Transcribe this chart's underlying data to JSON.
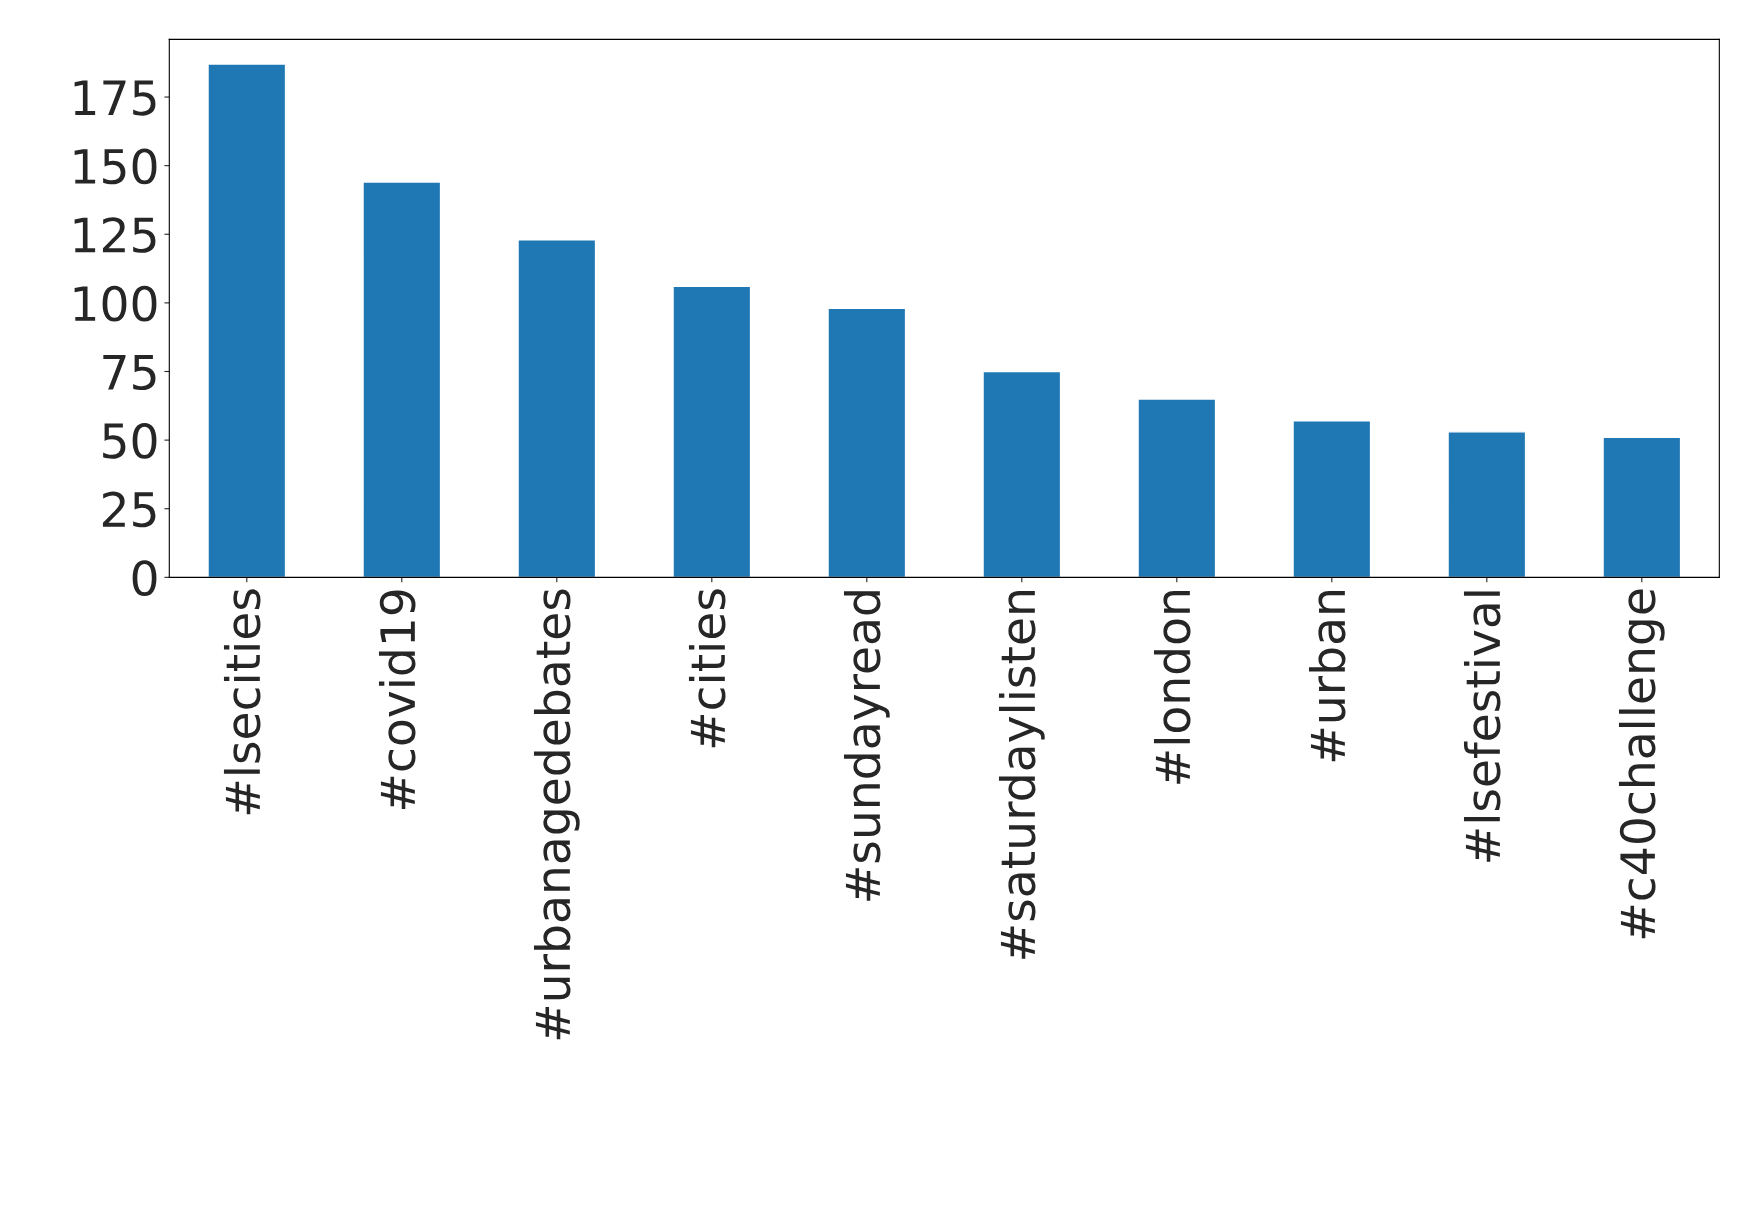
{
  "chart_data": {
    "type": "bar",
    "categories": [
      "#lsecities",
      "#covid19",
      "#urbanagedebates",
      "#cities",
      "#sundayread",
      "#saturdaylisten",
      "#london",
      "#urban",
      "#lsefestival",
      "#c40challenge"
    ],
    "values": [
      187,
      144,
      123,
      106,
      98,
      75,
      65,
      57,
      53,
      51
    ],
    "color": "#1f77b4",
    "ylim": [
      0,
      196
    ],
    "yticks": [
      0,
      25,
      50,
      75,
      100,
      125,
      150,
      175
    ],
    "grid": false,
    "legend": false
  }
}
